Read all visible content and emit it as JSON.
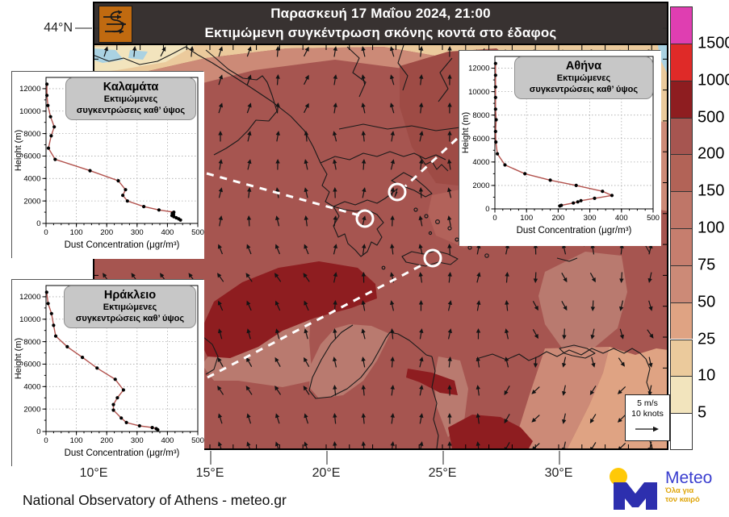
{
  "title_bar": {
    "line1": "Παρασκευή 17 Μαΐου 2024, 21:00",
    "line2": "Εκτιμώμενη συγκέντρωση σκόνης κοντά στο έδαφος"
  },
  "map": {
    "lat_label": "44°N",
    "lon_labels": [
      "10°E",
      "15°E",
      "20°E",
      "25°E",
      "30°E"
    ],
    "wind_legend": {
      "line1": "5 m/s",
      "line2": "10 knots"
    },
    "attribution": "National Observatory of Athens - meteo.gr",
    "base_color": "#a65550",
    "arrow_color": "#141414"
  },
  "colorbar": {
    "labels": [
      "1500",
      "1000",
      "500",
      "200",
      "150",
      "100",
      "75",
      "50",
      "25",
      "10",
      "5"
    ],
    "colors": [
      "#df3eb1",
      "#df2a28",
      "#8e1d20",
      "#a65550",
      "#b26357",
      "#bf7668",
      "#c67e6e",
      "#cc8a77",
      "#dfa383",
      "#ebca9c",
      "#f2e4bd",
      "#ffffff"
    ]
  },
  "logo": {
    "brand": "Meteo",
    "tagline1": "Όλα για",
    "tagline2": "τον καιρό",
    "m_color": "#2d2fae",
    "dot_color": "#ffc907"
  },
  "chart_data": [
    {
      "type": "line",
      "title": "Καλαμάτα",
      "subtitle1": "Εκτιμώμενες",
      "subtitle2": "συγκεντρώσεις  καθ’ ύψος",
      "xlabel": "Dust Concentration (μgr/m³)",
      "ylabel": "Height (m)",
      "xlim": [
        0,
        500
      ],
      "ylim": [
        0,
        13000
      ],
      "xticks": [
        0,
        100,
        200,
        300,
        400,
        500
      ],
      "yticks": [
        0,
        2000,
        4000,
        6000,
        8000,
        10000,
        12000
      ],
      "line_color": "#b2524d",
      "points": [
        [
          443,
          300
        ],
        [
          437,
          400
        ],
        [
          429,
          500
        ],
        [
          421,
          600
        ],
        [
          415,
          700
        ],
        [
          420,
          800
        ],
        [
          416,
          900
        ],
        [
          421,
          1000
        ],
        [
          372,
          1200
        ],
        [
          322,
          1500
        ],
        [
          268,
          2000
        ],
        [
          253,
          2500
        ],
        [
          262,
          3000
        ],
        [
          238,
          3800
        ],
        [
          145,
          4700
        ],
        [
          30,
          5700
        ],
        [
          8,
          6700
        ],
        [
          17,
          7800
        ],
        [
          27,
          8600
        ],
        [
          15,
          9500
        ],
        [
          6,
          10500
        ],
        [
          3,
          11400
        ],
        [
          3,
          12400
        ]
      ]
    },
    {
      "type": "line",
      "title": "Αθήνα",
      "subtitle1": "Εκτιμώμενες",
      "subtitle2": "συγκεντρώσεις  καθ’ ύψος",
      "xlabel": "Dust Concentration (μgr/m³)",
      "ylabel": "Height (m)",
      "xlim": [
        0,
        500
      ],
      "ylim": [
        0,
        13000
      ],
      "xticks": [
        0,
        100,
        200,
        300,
        400,
        500
      ],
      "yticks": [
        0,
        2000,
        4000,
        6000,
        8000,
        10000,
        12000
      ],
      "line_color": "#b2524d",
      "points": [
        [
          205,
          250
        ],
        [
          210,
          300
        ],
        [
          248,
          500
        ],
        [
          262,
          600
        ],
        [
          272,
          700
        ],
        [
          315,
          900
        ],
        [
          370,
          1150
        ],
        [
          340,
          1500
        ],
        [
          257,
          2000
        ],
        [
          175,
          2450
        ],
        [
          95,
          3000
        ],
        [
          32,
          3750
        ],
        [
          8,
          4700
        ],
        [
          3,
          5700
        ],
        [
          2,
          6600
        ],
        [
          4,
          7600
        ],
        [
          2,
          8500
        ],
        [
          2,
          9500
        ],
        [
          2,
          10400
        ],
        [
          2,
          11400
        ],
        [
          2,
          12400
        ]
      ]
    },
    {
      "type": "line",
      "title": "Ηράκλειο",
      "subtitle1": "Εκτιμώμενες",
      "subtitle2": "συγκεντρώσεις  καθ’ ύψος",
      "xlabel": "Dust Concentration (μgr/m³)",
      "ylabel": "Height (m)",
      "xlim": [
        0,
        500
      ],
      "ylim": [
        0,
        13000
      ],
      "xticks": [
        0,
        100,
        200,
        300,
        400,
        500
      ],
      "yticks": [
        0,
        2000,
        4000,
        6000,
        8000,
        10000,
        12000
      ],
      "line_color": "#b2524d",
      "points": [
        [
          368,
          150
        ],
        [
          363,
          250
        ],
        [
          350,
          350
        ],
        [
          308,
          500
        ],
        [
          265,
          800
        ],
        [
          248,
          1200
        ],
        [
          222,
          1900
        ],
        [
          222,
          2400
        ],
        [
          235,
          3000
        ],
        [
          255,
          3700
        ],
        [
          228,
          4650
        ],
        [
          168,
          5650
        ],
        [
          120,
          6600
        ],
        [
          70,
          7550
        ],
        [
          32,
          8500
        ],
        [
          25,
          9450
        ],
        [
          18,
          10500
        ],
        [
          7,
          11400
        ],
        [
          2,
          12400
        ]
      ]
    }
  ]
}
